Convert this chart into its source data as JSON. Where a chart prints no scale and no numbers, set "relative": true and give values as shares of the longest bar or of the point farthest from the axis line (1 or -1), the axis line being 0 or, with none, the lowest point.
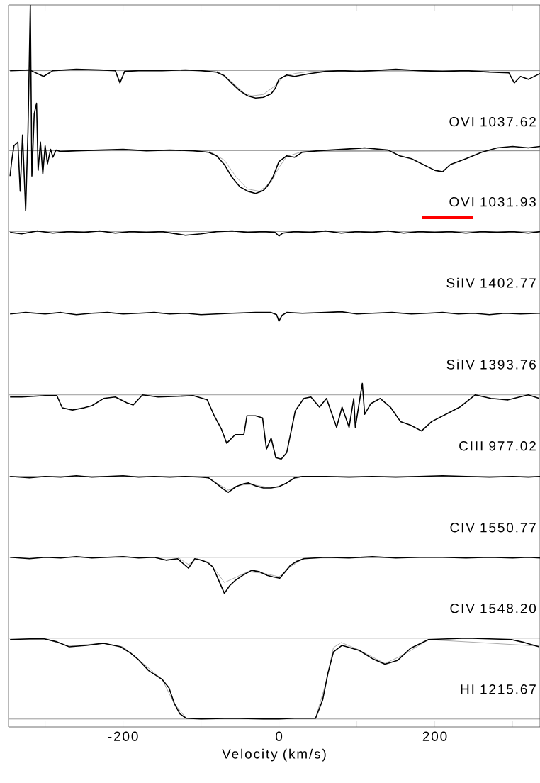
{
  "chart_data": {
    "type": "line",
    "xlabel": "Velocity (km/s)",
    "relative": true,
    "xlim": [
      -347,
      335
    ],
    "xticks": [
      {
        "value": -300,
        "label": null
      },
      -200,
      {
        "value": -100,
        "label": null
      },
      0,
      {
        "value": 100,
        "label": null
      },
      200,
      {
        "value": 300,
        "label": null
      }
    ],
    "annotations": [
      "OVI 1037.62",
      "OVI 1031.93",
      "SiIV 1402.77",
      "SiIV 1393.76",
      "CIII 977.02",
      "CIV 1550.77",
      "CIV 1548.20",
      "HI 1215.67"
    ],
    "ref_lines": [
      {
        "axis": "x",
        "value": 0,
        "color": "#555555"
      },
      {
        "axis": "y",
        "value": 0.909,
        "color": "#555555"
      },
      {
        "axis": "y",
        "value": 0.798,
        "color": "#555555"
      },
      {
        "axis": "y",
        "value": 0.686,
        "color": "#555555"
      },
      {
        "axis": "y",
        "value": 0.573,
        "color": "#555555"
      },
      {
        "axis": "y",
        "value": 0.46,
        "color": "#555555"
      },
      {
        "axis": "y",
        "value": 0.347,
        "color": "#555555"
      },
      {
        "axis": "y",
        "value": 0.235,
        "color": "#555555"
      },
      {
        "axis": "y",
        "value": 0.123,
        "color": "#555555"
      },
      {
        "axis": "y",
        "value": 0.011,
        "color": "#555555"
      }
    ],
    "series": [
      {
        "color": "#888888",
        "x": [
          -345,
          -80,
          -60,
          -45,
          -35,
          -20,
          -5,
          5,
          20,
          40,
          335
        ],
        "values": [
          0.909,
          0.909,
          0.893,
          0.878,
          0.874,
          0.876,
          0.888,
          0.9,
          0.905,
          0.908,
          0.909
        ]
      },
      {
        "color": "#000000",
        "x": [
          -345,
          -320,
          -302,
          -290,
          -260,
          -230,
          -210,
          -204,
          -198,
          -180,
          -150,
          -120,
          -100,
          -80,
          -70,
          -60,
          -50,
          -40,
          -30,
          -20,
          -10,
          -5,
          0,
          10,
          20,
          40,
          60,
          80,
          100,
          120,
          150,
          180,
          210,
          240,
          270,
          295,
          302,
          310,
          320,
          335
        ],
        "values": [
          0.909,
          0.91,
          0.901,
          0.909,
          0.911,
          0.91,
          0.909,
          0.892,
          0.908,
          0.909,
          0.909,
          0.91,
          0.909,
          0.907,
          0.902,
          0.891,
          0.881,
          0.874,
          0.871,
          0.872,
          0.877,
          0.884,
          0.897,
          0.903,
          0.901,
          0.905,
          0.908,
          0.909,
          0.908,
          0.909,
          0.911,
          0.909,
          0.908,
          0.909,
          0.907,
          0.906,
          0.892,
          0.901,
          0.897,
          0.905
        ]
      },
      {
        "color": "#888888",
        "x": [
          -345,
          -90,
          -70,
          -55,
          -40,
          -25,
          -10,
          0,
          10,
          30,
          335
        ],
        "values": [
          0.798,
          0.798,
          0.785,
          0.762,
          0.745,
          0.742,
          0.755,
          0.775,
          0.79,
          0.797,
          0.798
        ]
      },
      {
        "color": "#000000",
        "x": [
          -345,
          -343,
          -340,
          -335,
          -332,
          -329,
          -325,
          -322,
          -319,
          -317,
          -314,
          -311,
          -309,
          -306,
          -303,
          -300,
          -297,
          -293,
          -290,
          -286,
          -280,
          -260,
          -230,
          -200,
          -170,
          -140,
          -110,
          -90,
          -80,
          -70,
          -60,
          -50,
          -40,
          -30,
          -20,
          -15,
          -8,
          0,
          10,
          20,
          30,
          50,
          80,
          110,
          140,
          155,
          170,
          185,
          200,
          210,
          220,
          240,
          260,
          280,
          300,
          320,
          335
        ],
        "values": [
          0.763,
          0.783,
          0.805,
          0.81,
          0.742,
          0.82,
          0.715,
          0.825,
          1.0,
          0.763,
          0.849,
          0.864,
          0.771,
          0.81,
          0.766,
          0.805,
          0.78,
          0.8,
          0.789,
          0.799,
          0.797,
          0.798,
          0.799,
          0.8,
          0.798,
          0.799,
          0.798,
          0.796,
          0.791,
          0.779,
          0.761,
          0.748,
          0.742,
          0.739,
          0.743,
          0.749,
          0.761,
          0.783,
          0.791,
          0.789,
          0.796,
          0.798,
          0.8,
          0.802,
          0.799,
          0.791,
          0.787,
          0.779,
          0.771,
          0.769,
          0.779,
          0.787,
          0.796,
          0.802,
          0.804,
          0.802,
          0.804
        ]
      },
      {
        "color": "#000000",
        "x": [
          -345,
          -330,
          -310,
          -290,
          -270,
          -250,
          -230,
          -210,
          -190,
          -170,
          -150,
          -120,
          -100,
          -80,
          -60,
          -40,
          -20,
          -5,
          0,
          5,
          20,
          40,
          60,
          80,
          100,
          120,
          140,
          160,
          180,
          200,
          220,
          240,
          260,
          280,
          300,
          320,
          335
        ],
        "values": [
          0.685,
          0.683,
          0.687,
          0.684,
          0.686,
          0.685,
          0.687,
          0.684,
          0.686,
          0.685,
          0.686,
          0.681,
          0.683,
          0.686,
          0.687,
          0.685,
          0.686,
          0.685,
          0.68,
          0.684,
          0.686,
          0.685,
          0.687,
          0.684,
          0.686,
          0.685,
          0.687,
          0.684,
          0.686,
          0.685,
          0.686,
          0.684,
          0.686,
          0.685,
          0.686,
          0.684,
          0.686
        ]
      },
      {
        "color": "#000000",
        "x": [
          -345,
          -325,
          -300,
          -280,
          -260,
          -240,
          -220,
          -200,
          -180,
          -160,
          -140,
          -120,
          -100,
          -80,
          -60,
          -30,
          -10,
          -3,
          0,
          4,
          10,
          30,
          60,
          80,
          100,
          120,
          145,
          170,
          190,
          210,
          230,
          250,
          270,
          290,
          310,
          335
        ],
        "values": [
          0.572,
          0.574,
          0.572,
          0.574,
          0.571,
          0.573,
          0.574,
          0.572,
          0.573,
          0.574,
          0.572,
          0.573,
          0.571,
          0.572,
          0.573,
          0.574,
          0.574,
          0.571,
          0.562,
          0.57,
          0.574,
          0.573,
          0.574,
          0.575,
          0.572,
          0.573,
          0.574,
          0.572,
          0.573,
          0.574,
          0.572,
          0.573,
          0.571,
          0.573,
          0.572,
          0.573
        ]
      },
      {
        "color": "#000000",
        "x": [
          -345,
          -330,
          -300,
          -285,
          -278,
          -265,
          -250,
          -240,
          -225,
          -210,
          -195,
          -187,
          -175,
          -155,
          -130,
          -110,
          -92,
          -83,
          -74,
          -67,
          -56,
          -45,
          -41,
          -30,
          -21,
          -16,
          -10,
          -4,
          3,
          10,
          21,
          32,
          41,
          52,
          61,
          74,
          81,
          90,
          96,
          98,
          107,
          110,
          118,
          130,
          143,
          156,
          169,
          183,
          196,
          214,
          232,
          252,
          272,
          294,
          320,
          334
        ],
        "values": [
          0.457,
          0.457,
          0.459,
          0.459,
          0.442,
          0.439,
          0.442,
          0.445,
          0.455,
          0.457,
          0.449,
          0.446,
          0.46,
          0.457,
          0.458,
          0.459,
          0.453,
          0.431,
          0.413,
          0.393,
          0.405,
          0.405,
          0.431,
          0.431,
          0.428,
          0.385,
          0.4,
          0.373,
          0.371,
          0.38,
          0.438,
          0.455,
          0.457,
          0.443,
          0.455,
          0.415,
          0.443,
          0.415,
          0.455,
          0.415,
          0.476,
          0.433,
          0.448,
          0.455,
          0.443,
          0.423,
          0.418,
          0.41,
          0.423,
          0.433,
          0.443,
          0.46,
          0.455,
          0.453,
          0.46,
          0.455
        ]
      },
      {
        "color": "#888888",
        "x": [
          -345,
          -95,
          -80,
          -65,
          -50,
          -35,
          -15,
          0,
          15,
          30,
          335
        ],
        "values": [
          0.347,
          0.347,
          0.338,
          0.328,
          0.335,
          0.336,
          0.332,
          0.332,
          0.342,
          0.347,
          0.347
        ]
      },
      {
        "color": "#000000",
        "x": [
          -345,
          -320,
          -300,
          -280,
          -260,
          -240,
          -220,
          -200,
          -180,
          -160,
          -140,
          -120,
          -100,
          -90,
          -80,
          -72,
          -65,
          -55,
          -45,
          -39,
          -30,
          -20,
          -10,
          0,
          10,
          20,
          30,
          60,
          90,
          120,
          150,
          180,
          210,
          240,
          270,
          300,
          320,
          335
        ],
        "values": [
          0.347,
          0.345,
          0.347,
          0.346,
          0.348,
          0.346,
          0.347,
          0.348,
          0.346,
          0.347,
          0.346,
          0.347,
          0.346,
          0.345,
          0.337,
          0.33,
          0.325,
          0.333,
          0.337,
          0.338,
          0.334,
          0.331,
          0.331,
          0.333,
          0.338,
          0.345,
          0.347,
          0.347,
          0.346,
          0.347,
          0.346,
          0.347,
          0.348,
          0.347,
          0.346,
          0.347,
          0.346,
          0.347
        ]
      },
      {
        "color": "#888888",
        "x": [
          -345,
          -130,
          -116,
          -105,
          -90,
          -78,
          -70,
          -60,
          -40,
          -20,
          0,
          15,
          32,
          335
        ],
        "values": [
          0.235,
          0.235,
          0.225,
          0.233,
          0.228,
          0.212,
          0.2,
          0.205,
          0.215,
          0.213,
          0.208,
          0.222,
          0.234,
          0.235
        ]
      },
      {
        "color": "#000000",
        "x": [
          -345,
          -320,
          -300,
          -280,
          -260,
          -240,
          -220,
          -200,
          -180,
          -160,
          -145,
          -130,
          -116,
          -108,
          -100,
          -92,
          -85,
          -78,
          -70,
          -63,
          -56,
          -45,
          -35,
          -25,
          -15,
          -8,
          1,
          8,
          14,
          22,
          32,
          60,
          90,
          120,
          150,
          180,
          210,
          240,
          270,
          300,
          320,
          335
        ],
        "values": [
          0.235,
          0.233,
          0.235,
          0.234,
          0.236,
          0.234,
          0.235,
          0.236,
          0.234,
          0.235,
          0.231,
          0.233,
          0.22,
          0.233,
          0.231,
          0.228,
          0.222,
          0.205,
          0.185,
          0.196,
          0.203,
          0.211,
          0.217,
          0.215,
          0.21,
          0.208,
          0.206,
          0.215,
          0.223,
          0.229,
          0.233,
          0.235,
          0.234,
          0.236,
          0.234,
          0.235,
          0.235,
          0.234,
          0.235,
          0.234,
          0.235,
          0.234
        ]
      },
      {
        "color": "#888888",
        "x": [
          -345,
          -300,
          -270,
          -225,
          -200,
          -181,
          -150,
          -134,
          -119,
          47,
          60,
          70,
          80,
          100,
          136,
          160,
          192,
          241,
          334
        ],
        "values": [
          0.121,
          0.122,
          0.112,
          0.116,
          0.111,
          0.094,
          0.066,
          0.032,
          0.012,
          0.012,
          0.06,
          0.11,
          0.117,
          0.108,
          0.088,
          0.1,
          0.121,
          null,
          0.112
        ]
      },
      {
        "color": "#000000",
        "x": [
          -345,
          -320,
          -301,
          -285,
          -269,
          -247,
          -225,
          -203,
          -190,
          -181,
          -167,
          -150,
          -141,
          -134,
          -127,
          -119,
          -100,
          -60,
          -20,
          0,
          20,
          47,
          56,
          63,
          70,
          81,
          103,
          121,
          136,
          152,
          169,
          192,
          241,
          270,
          298,
          315,
          334
        ],
        "values": [
          0.121,
          0.122,
          0.122,
          0.118,
          0.111,
          0.113,
          0.116,
          0.111,
          0.102,
          0.094,
          0.078,
          0.066,
          0.054,
          0.032,
          0.018,
          0.012,
          0.011,
          0.012,
          0.011,
          0.011,
          0.012,
          0.012,
          0.037,
          0.075,
          0.104,
          0.113,
          0.106,
          0.094,
          0.087,
          0.092,
          0.109,
          0.121,
          0.123,
          0.122,
          0.121,
          0.117,
          0.111
        ]
      }
    ]
  }
}
